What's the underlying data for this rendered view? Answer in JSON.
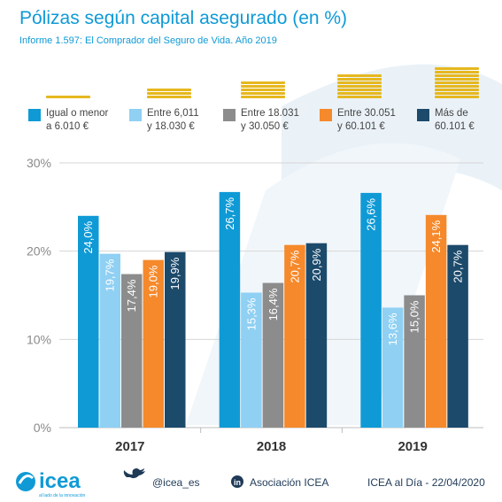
{
  "header": {
    "title": "Pólizas según capital asegurado (en %)",
    "subtitle": "Informe 1.597: El Comprador del Seguro de Vida. Año 2019"
  },
  "chart_data": {
    "type": "bar",
    "categories": [
      "2017",
      "2018",
      "2019"
    ],
    "series": [
      {
        "name": "Igual o menor a 6.010 €",
        "color": "#0f9ad6",
        "values": [
          24.0,
          26.7,
          26.6
        ],
        "labels": [
          "24,0%",
          "26,7%",
          "26,6%"
        ]
      },
      {
        "name": "Entre 6,011 y 18.030 €",
        "color": "#8fd0f3",
        "values": [
          19.7,
          15.3,
          13.6
        ],
        "labels": [
          "19,7%",
          "15,3%",
          "13,6%"
        ]
      },
      {
        "name": "Entre 18.031 y 30.050 €",
        "color": "#8c8c8c",
        "values": [
          17.4,
          16.4,
          15.0
        ],
        "labels": [
          "17,4%",
          "16,4%",
          "15,0%"
        ]
      },
      {
        "name": "Entre 30.051 y 60.101 €",
        "color": "#f5892b",
        "values": [
          19.0,
          20.7,
          24.1
        ],
        "labels": [
          "19,0%",
          "20,7%",
          "24,1%"
        ]
      },
      {
        "name": "Más de 60.101 €",
        "color": "#1c4a6b",
        "values": [
          19.9,
          20.9,
          20.7
        ],
        "labels": [
          "19,9%",
          "20,9%",
          "20,7%"
        ]
      }
    ],
    "legend": [
      {
        "line1": "Igual o menor",
        "line2": "a 6.010 €"
      },
      {
        "line1": "Entre 6,011",
        "line2": "y 18.030 €"
      },
      {
        "line1": "Entre 18.031",
        "line2": "y 30.050 €"
      },
      {
        "line1": "Entre 30.051",
        "line2": "y 60.101 €"
      },
      {
        "line1": "Más de",
        "line2": "60.101 €"
      }
    ],
    "legend_coin_stacks": [
      1,
      3,
      5,
      7,
      9
    ],
    "ylim": [
      0,
      30
    ],
    "yticks": [
      0,
      10,
      20,
      30
    ],
    "ytick_labels": [
      "0%",
      "10%",
      "20%",
      "30%"
    ],
    "grid": true,
    "legend_position": "top",
    "coin_color": "#e6b81f"
  },
  "footer": {
    "logo_text": "icea",
    "logo_tagline": "al lado de la innovación",
    "twitter": "@icea_es",
    "linkedin": "Asociación ICEA",
    "date_text": "ICEA al Día - 22/04/2020"
  },
  "colors": {
    "brand": "#0f9ad6",
    "dark": "#1f3a57"
  }
}
